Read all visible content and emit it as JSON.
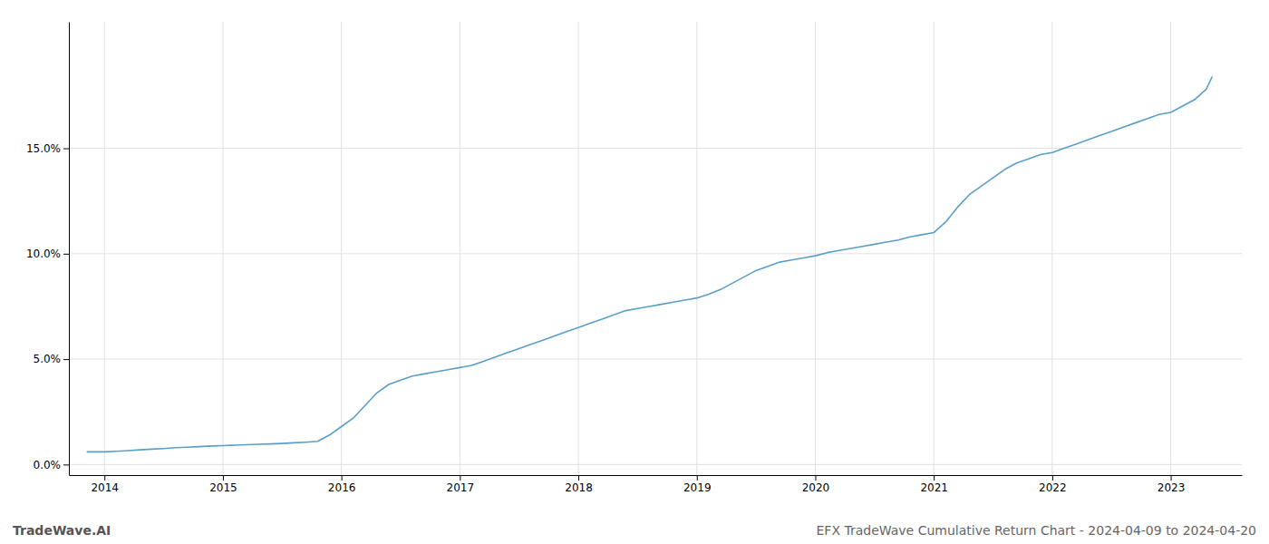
{
  "chart_data": {
    "type": "line",
    "title": "EFX TradeWave Cumulative Return Chart - 2024-04-09 to 2024-04-20",
    "annotations": [
      "TradeWave.AI"
    ],
    "color": "#5b9ec9",
    "grid": true,
    "x": [
      2013.85,
      2014.0,
      2014.1,
      2014.2,
      2014.3,
      2014.4,
      2014.5,
      2014.6,
      2014.7,
      2014.8,
      2014.9,
      2015.0,
      2015.1,
      2015.2,
      2015.3,
      2015.4,
      2015.5,
      2015.6,
      2015.7,
      2015.8,
      2015.9,
      2016.0,
      2016.1,
      2016.2,
      2016.3,
      2016.4,
      2016.5,
      2016.6,
      2016.7,
      2016.8,
      2016.9,
      2017.0,
      2017.1,
      2017.2,
      2017.3,
      2017.4,
      2017.5,
      2017.6,
      2017.7,
      2017.8,
      2017.9,
      2018.0,
      2018.1,
      2018.2,
      2018.3,
      2018.4,
      2018.5,
      2018.6,
      2018.7,
      2018.8,
      2018.9,
      2019.0,
      2019.1,
      2019.2,
      2019.3,
      2019.4,
      2019.5,
      2019.6,
      2019.7,
      2019.8,
      2019.9,
      2020.0,
      2020.1,
      2020.2,
      2020.3,
      2020.4,
      2020.5,
      2020.6,
      2020.7,
      2020.8,
      2020.9,
      2021.0,
      2021.1,
      2021.2,
      2021.3,
      2021.4,
      2021.5,
      2021.6,
      2021.7,
      2021.8,
      2021.9,
      2022.0,
      2022.1,
      2022.2,
      2022.3,
      2022.4,
      2022.5,
      2022.6,
      2022.7,
      2022.8,
      2022.9,
      2023.0,
      2023.1,
      2023.2,
      2023.3,
      2023.35
    ],
    "values": [
      0.006,
      0.006,
      0.0063,
      0.0066,
      0.007,
      0.0073,
      0.0076,
      0.008,
      0.0082,
      0.0085,
      0.0088,
      0.009,
      0.0092,
      0.0094,
      0.0096,
      0.0098,
      0.01,
      0.0103,
      0.0106,
      0.011,
      0.014,
      0.018,
      0.022,
      0.028,
      0.034,
      0.038,
      0.04,
      0.042,
      0.043,
      0.044,
      0.045,
      0.046,
      0.047,
      0.049,
      0.051,
      0.053,
      0.055,
      0.057,
      0.059,
      0.061,
      0.063,
      0.065,
      0.067,
      0.069,
      0.071,
      0.073,
      0.074,
      0.075,
      0.076,
      0.077,
      0.078,
      0.079,
      0.0808,
      0.083,
      0.086,
      0.089,
      0.092,
      0.094,
      0.096,
      0.097,
      0.098,
      0.099,
      0.1005,
      0.1015,
      0.1025,
      0.1035,
      0.1045,
      0.1055,
      0.1065,
      0.108,
      0.109,
      0.11,
      0.115,
      0.122,
      0.128,
      0.132,
      0.136,
      0.14,
      0.143,
      0.145,
      0.147,
      0.148,
      0.15,
      0.152,
      0.154,
      0.156,
      0.158,
      0.16,
      0.162,
      0.164,
      0.166,
      0.167,
      0.17,
      0.173,
      0.178,
      0.184
    ],
    "xlim": [
      2013.7,
      2023.6
    ],
    "ylim": [
      -0.005,
      0.21
    ],
    "xticks": [
      2014,
      2015,
      2016,
      2017,
      2018,
      2019,
      2020,
      2021,
      2022,
      2023
    ],
    "yticks": [
      {
        "value": 0.0,
        "label": "0.0%"
      },
      {
        "value": 0.05,
        "label": "5.0%"
      },
      {
        "value": 0.1,
        "label": "10.0%"
      },
      {
        "value": 0.15,
        "label": "15.0%"
      }
    ]
  }
}
